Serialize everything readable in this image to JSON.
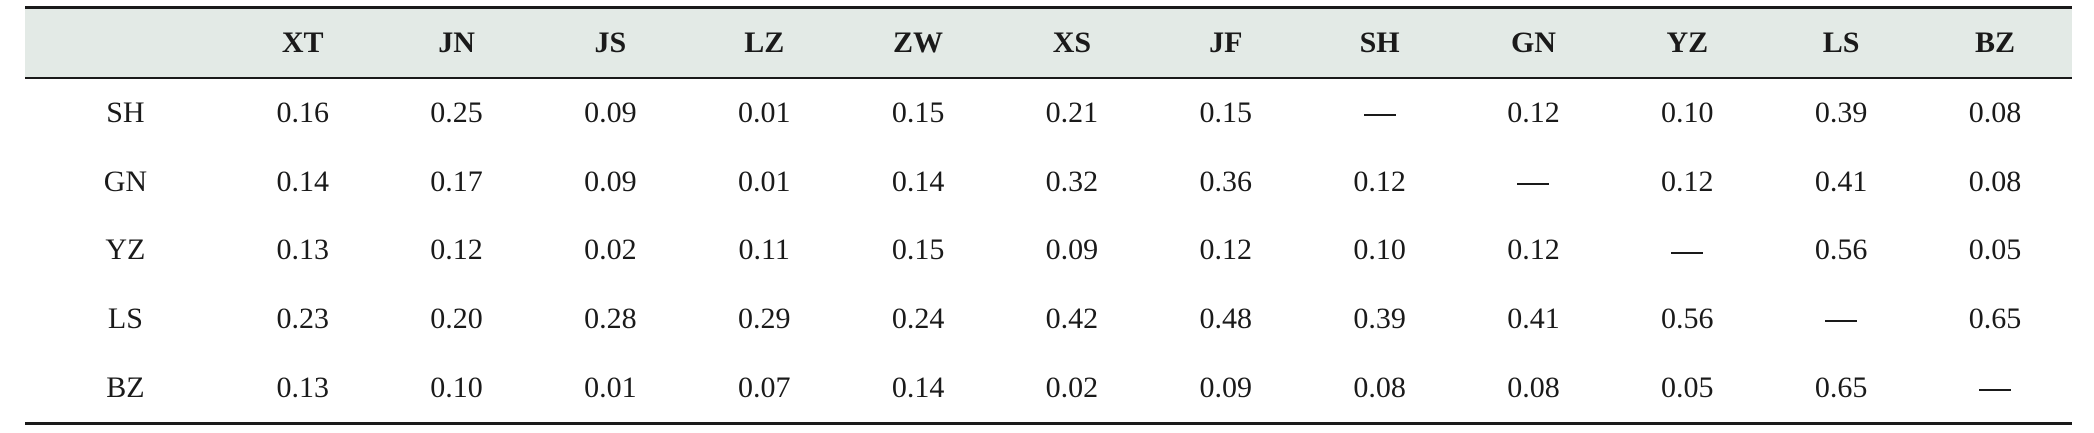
{
  "table": {
    "corner": "",
    "columns": [
      "XT",
      "JN",
      "JS",
      "LZ",
      "ZW",
      "XS",
      "JF",
      "SH",
      "GN",
      "YZ",
      "LS",
      "BZ"
    ],
    "rows": [
      {
        "label": "SH",
        "values": [
          "0.16",
          "0.25",
          "0.09",
          "0.01",
          "0.15",
          "0.21",
          "0.15",
          "—",
          "0.12",
          "0.10",
          "0.39",
          "0.08"
        ]
      },
      {
        "label": "GN",
        "values": [
          "0.14",
          "0.17",
          "0.09",
          "0.01",
          "0.14",
          "0.32",
          "0.36",
          "0.12",
          "—",
          "0.12",
          "0.41",
          "0.08"
        ]
      },
      {
        "label": "YZ",
        "values": [
          "0.13",
          "0.12",
          "0.02",
          "0.11",
          "0.15",
          "0.09",
          "0.12",
          "0.10",
          "0.12",
          "—",
          "0.56",
          "0.05"
        ]
      },
      {
        "label": "LS",
        "values": [
          "0.23",
          "0.20",
          "0.28",
          "0.29",
          "0.24",
          "0.42",
          "0.48",
          "0.39",
          "0.41",
          "0.56",
          "—",
          "0.65"
        ]
      },
      {
        "label": "BZ",
        "values": [
          "0.13",
          "0.10",
          "0.01",
          "0.07",
          "0.14",
          "0.02",
          "0.09",
          "0.08",
          "0.08",
          "0.05",
          "0.65",
          "—"
        ]
      }
    ]
  },
  "colors": {
    "header_background": "#e3eae6",
    "rule": "#1a1a1a",
    "text": "#1a1a1a"
  }
}
